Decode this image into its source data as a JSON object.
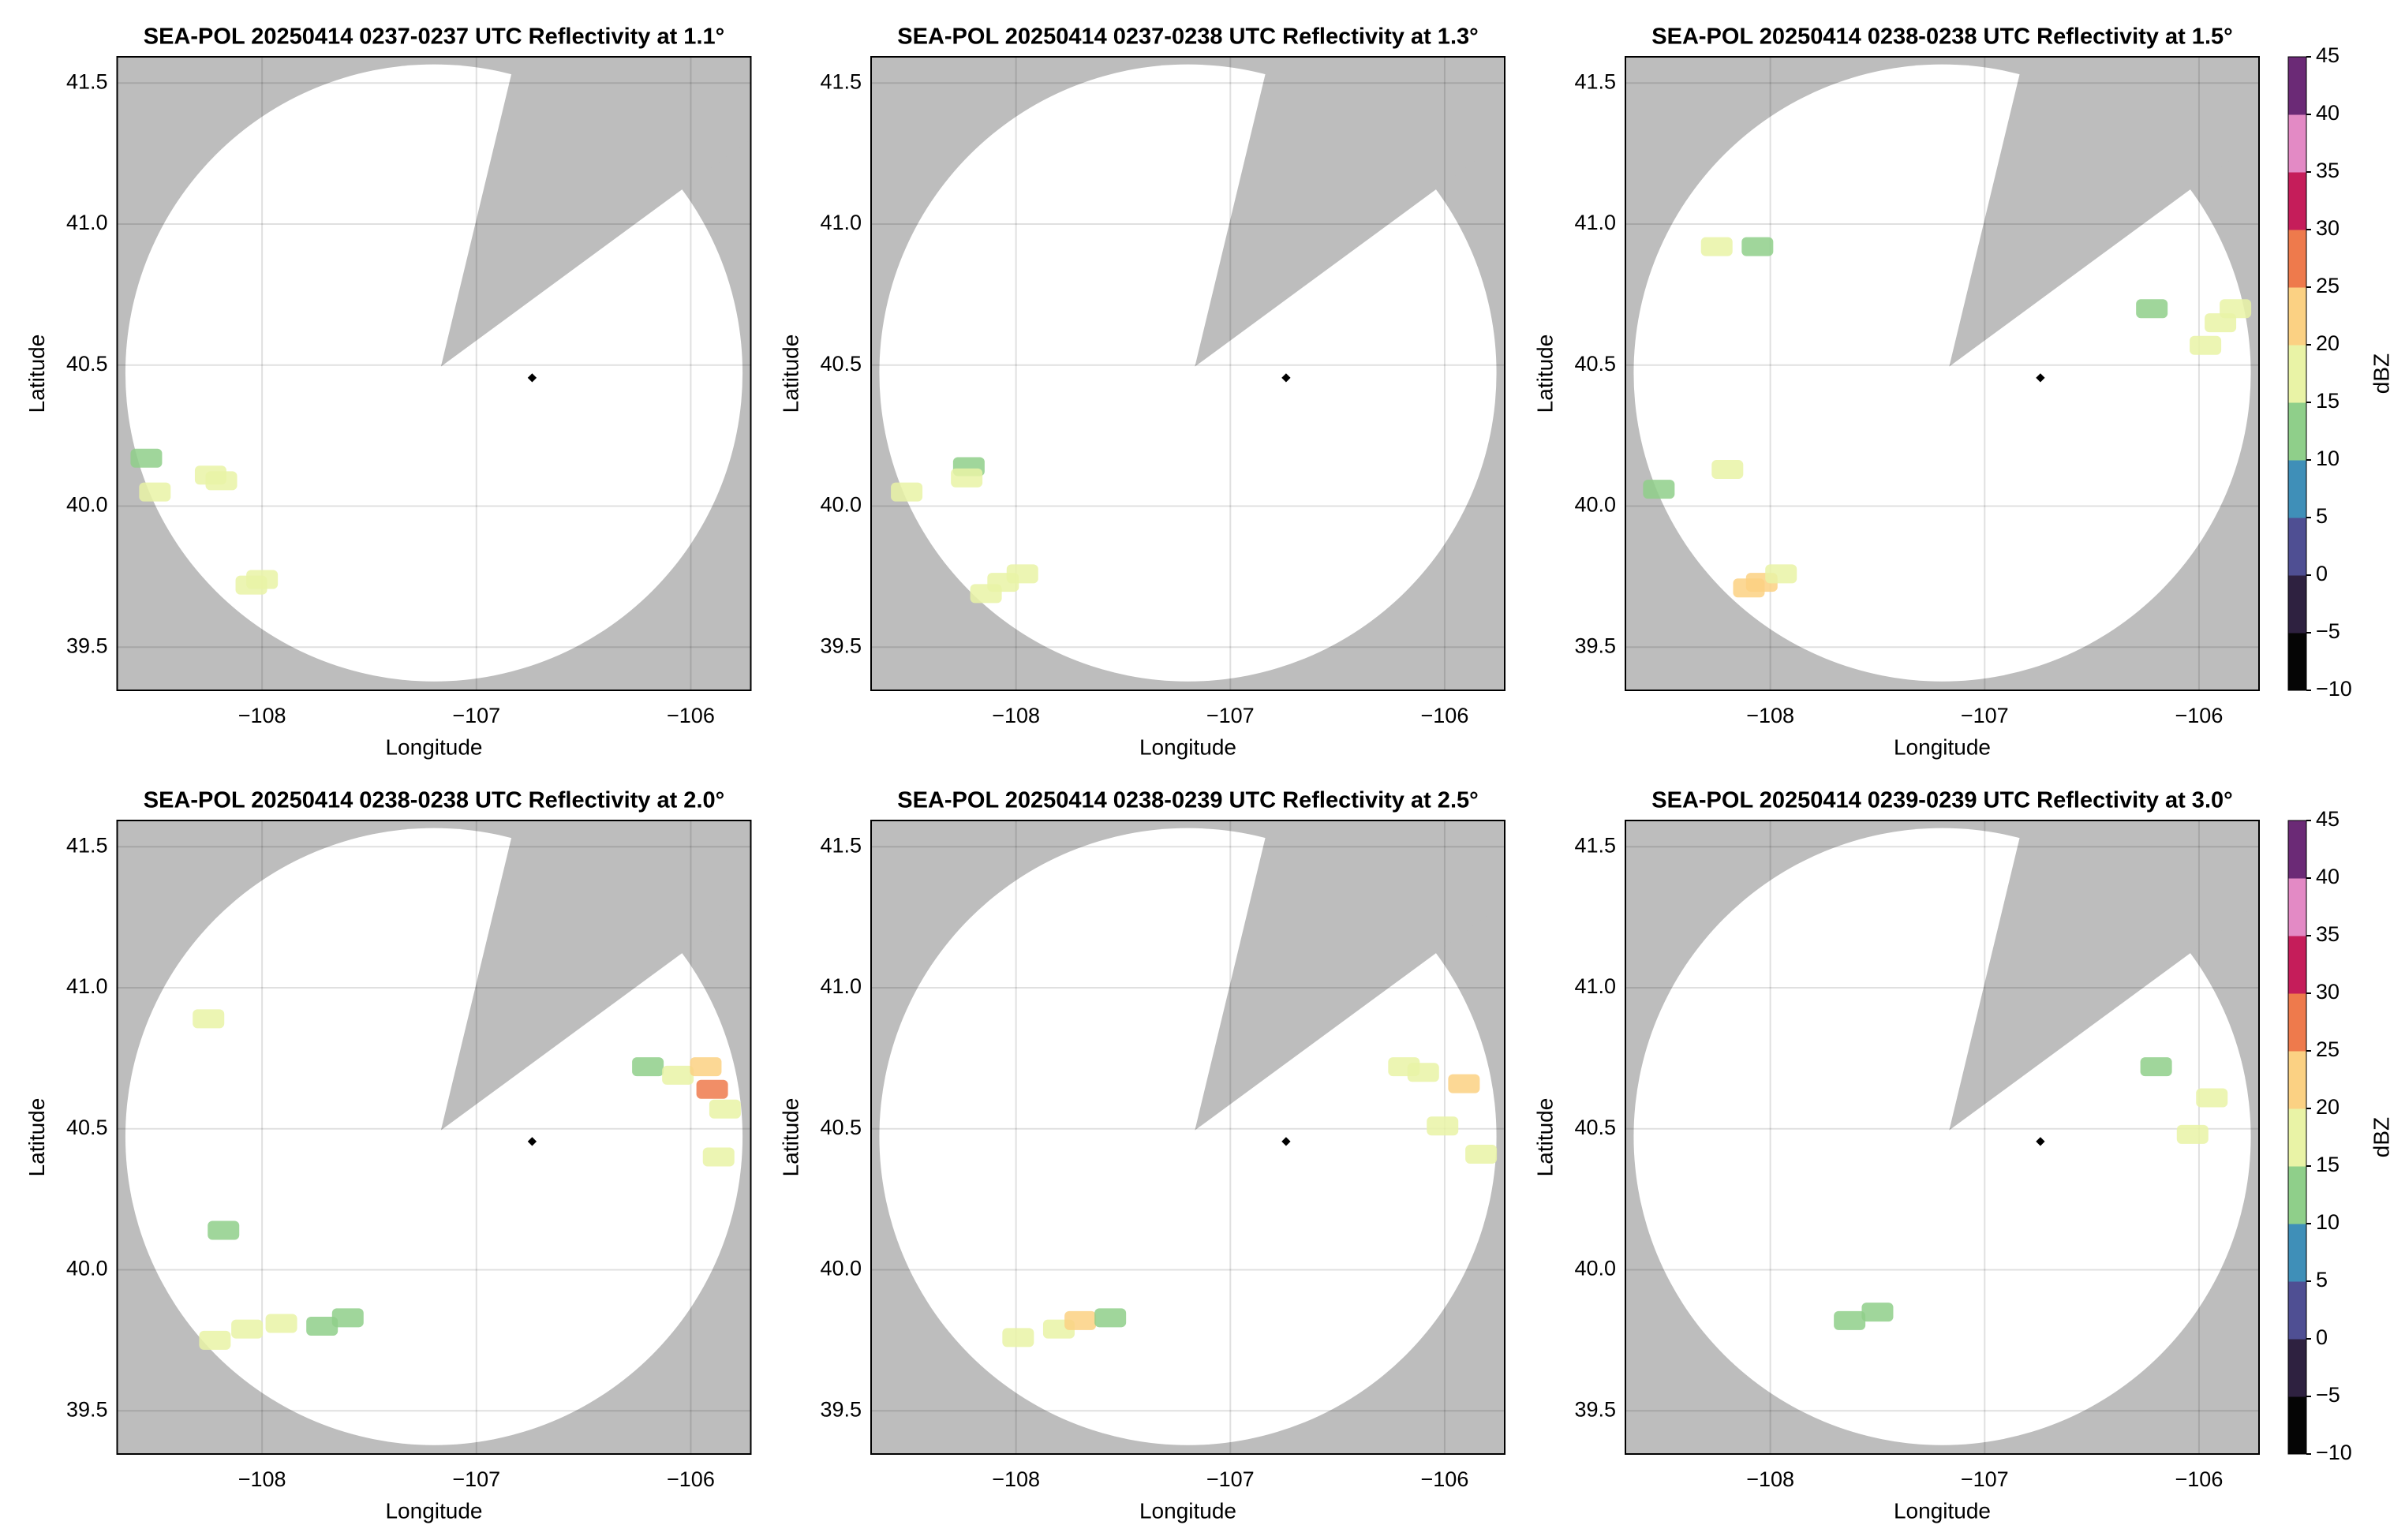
{
  "chart_data": [
    {
      "type": "scatter",
      "title": "SEA-POL 20250414 0237-0237 UTC Reflectivity at 1.1°",
      "xlabel": "Longitude",
      "ylabel": "Latitude",
      "xlim": [
        -108.676,
        -105.72
      ],
      "ylim": [
        39.347,
        41.593
      ],
      "xticks": [
        {
          "value": -108,
          "label": "−108"
        },
        {
          "value": -107,
          "label": "−107"
        },
        {
          "value": -106,
          "label": "−106"
        }
      ],
      "yticks": [
        39.5,
        {
          "value": 40,
          "label": "40.0"
        },
        40.5,
        {
          "value": 41,
          "label": "41.0"
        },
        41.5
      ],
      "grid": true,
      "site": {
        "x": -106.74,
        "y": 40.455
      },
      "x": [
        -108.54,
        -108.5,
        -108.24,
        -108.19,
        -108.05,
        -108.0
      ],
      "y": [
        40.17,
        40.05,
        40.11,
        40.09,
        39.72,
        39.74
      ],
      "values": [
        14,
        15,
        16,
        17,
        16,
        17
      ]
    },
    {
      "type": "scatter",
      "title": "SEA-POL 20250414 0237-0238 UTC Reflectivity at 1.3°",
      "xlabel": "Longitude",
      "ylabel": "Latitude",
      "xlim": [
        -108.676,
        -105.72
      ],
      "ylim": [
        39.347,
        41.593
      ],
      "xticks": [
        {
          "value": -108,
          "label": "−108"
        },
        {
          "value": -107,
          "label": "−107"
        },
        {
          "value": -106,
          "label": "−106"
        }
      ],
      "yticks": [
        39.5,
        {
          "value": 40,
          "label": "40.0"
        },
        40.5,
        {
          "value": 41,
          "label": "41.0"
        },
        41.5
      ],
      "grid": true,
      "site": {
        "x": -106.74,
        "y": 40.455
      },
      "x": [
        -108.51,
        -108.22,
        -108.23,
        -108.14,
        -108.06,
        -107.97
      ],
      "y": [
        40.05,
        40.14,
        40.1,
        39.69,
        39.73,
        39.76
      ],
      "values": [
        16,
        14,
        16,
        18,
        18,
        17
      ]
    },
    {
      "type": "scatter",
      "title": "SEA-POL 20250414 0238-0238 UTC Reflectivity at 1.5°",
      "xlabel": "Longitude",
      "ylabel": "Latitude",
      "xlim": [
        -108.676,
        -105.72
      ],
      "ylim": [
        39.347,
        41.593
      ],
      "xticks": [
        {
          "value": -108,
          "label": "−108"
        },
        {
          "value": -107,
          "label": "−107"
        },
        {
          "value": -106,
          "label": "−106"
        }
      ],
      "yticks": [
        39.5,
        {
          "value": 40,
          "label": "40.0"
        },
        40.5,
        {
          "value": 41,
          "label": "41.0"
        },
        41.5
      ],
      "grid": true,
      "site": {
        "x": -106.74,
        "y": 40.455
      },
      "x": [
        -108.52,
        -108.2,
        -108.25,
        -108.06,
        -108.04,
        -108.1,
        -107.95,
        -106.22,
        -105.97,
        -105.9,
        -105.83
      ],
      "y": [
        40.06,
        40.13,
        40.92,
        40.92,
        39.73,
        39.71,
        39.76,
        40.7,
        40.57,
        40.65,
        40.7
      ],
      "values": [
        14,
        15,
        16,
        13,
        21,
        23,
        18,
        14,
        17,
        19,
        18
      ],
      "colorbar": {
        "label": "dBZ",
        "clim": [
          -10,
          45
        ],
        "ticks": [
          {
            "value": -10,
            "label": "−10"
          },
          {
            "value": -5,
            "label": "−5"
          },
          0,
          5,
          10,
          15,
          20,
          25,
          30,
          35,
          40,
          45
        ],
        "colors": [
          "#050505",
          "#2e2140",
          "#4f4f93",
          "#3f8fb8",
          "#8fcf8a",
          "#e9f3a6",
          "#fbd183",
          "#ee7a4c",
          "#c51d5a",
          "#e38ac5",
          "#6b2a76"
        ]
      }
    },
    {
      "type": "scatter",
      "title": "SEA-POL 20250414 0238-0238 UTC Reflectivity at 2.0°",
      "xlabel": "Longitude",
      "ylabel": "Latitude",
      "xlim": [
        -108.676,
        -105.72
      ],
      "ylim": [
        39.347,
        41.593
      ],
      "xticks": [
        {
          "value": -108,
          "label": "−108"
        },
        {
          "value": -107,
          "label": "−107"
        },
        {
          "value": -106,
          "label": "−106"
        }
      ],
      "yticks": [
        39.5,
        {
          "value": 40,
          "label": "40.0"
        },
        40.5,
        {
          "value": 41,
          "label": "41.0"
        },
        41.5
      ],
      "grid": true,
      "site": {
        "x": -106.74,
        "y": 40.455
      },
      "x": [
        -108.25,
        -108.18,
        -108.22,
        -108.07,
        -107.91,
        -107.72,
        -107.6,
        -106.2,
        -106.06,
        -105.93,
        -105.9,
        -105.84,
        -105.87
      ],
      "y": [
        40.89,
        40.14,
        39.75,
        39.79,
        39.81,
        39.8,
        39.83,
        40.72,
        40.69,
        40.72,
        40.64,
        40.57,
        40.4
      ],
      "values": [
        17,
        14,
        19,
        18,
        17,
        13,
        14,
        14,
        15,
        21,
        26,
        19,
        18
      ]
    },
    {
      "type": "scatter",
      "title": "SEA-POL 20250414 0238-0239 UTC Reflectivity at 2.5°",
      "xlabel": "Longitude",
      "ylabel": "Latitude",
      "xlim": [
        -108.676,
        -105.72
      ],
      "ylim": [
        39.347,
        41.593
      ],
      "xticks": [
        {
          "value": -108,
          "label": "−108"
        },
        {
          "value": -107,
          "label": "−107"
        },
        {
          "value": -106,
          "label": "−106"
        }
      ],
      "yticks": [
        39.5,
        {
          "value": 40,
          "label": "40.0"
        },
        40.5,
        {
          "value": 41,
          "label": "41.0"
        },
        41.5
      ],
      "grid": true,
      "site": {
        "x": -106.74,
        "y": 40.455
      },
      "x": [
        -107.99,
        -107.8,
        -107.7,
        -107.56,
        -106.19,
        -106.1,
        -105.91,
        -106.01,
        -105.83
      ],
      "y": [
        39.76,
        39.79,
        39.82,
        39.83,
        40.72,
        40.7,
        40.66,
        40.51,
        40.41
      ],
      "values": [
        16,
        17,
        20,
        13,
        16,
        18,
        24,
        15,
        19
      ]
    },
    {
      "type": "scatter",
      "title": "SEA-POL 20250414 0239-0239 UTC Reflectivity at 3.0°",
      "xlabel": "Longitude",
      "ylabel": "Latitude",
      "xlim": [
        -108.676,
        -105.72
      ],
      "ylim": [
        39.347,
        41.593
      ],
      "xticks": [
        {
          "value": -108,
          "label": "−108"
        },
        {
          "value": -107,
          "label": "−107"
        },
        {
          "value": -106,
          "label": "−106"
        }
      ],
      "yticks": [
        39.5,
        {
          "value": 40,
          "label": "40.0"
        },
        40.5,
        {
          "value": 41,
          "label": "41.0"
        },
        41.5
      ],
      "grid": true,
      "site": {
        "x": -106.74,
        "y": 40.455
      },
      "x": [
        -107.63,
        -107.5,
        -106.2,
        -106.03,
        -105.94
      ],
      "y": [
        39.82,
        39.85,
        40.72,
        40.48,
        40.61
      ],
      "values": [
        14,
        13,
        14,
        15,
        16
      ],
      "colorbar": {
        "label": "dBZ",
        "clim": [
          -10,
          45
        ],
        "ticks": [
          {
            "value": -10,
            "label": "−10"
          },
          {
            "value": -5,
            "label": "−5"
          },
          0,
          5,
          10,
          15,
          20,
          25,
          30,
          35,
          40,
          45
        ],
        "colors": [
          "#050505",
          "#2e2140",
          "#4f4f93",
          "#3f8fb8",
          "#8fcf8a",
          "#e9f3a6",
          "#fbd183",
          "#ee7a4c",
          "#c51d5a",
          "#e38ac5",
          "#6b2a76"
        ]
      }
    }
  ]
}
